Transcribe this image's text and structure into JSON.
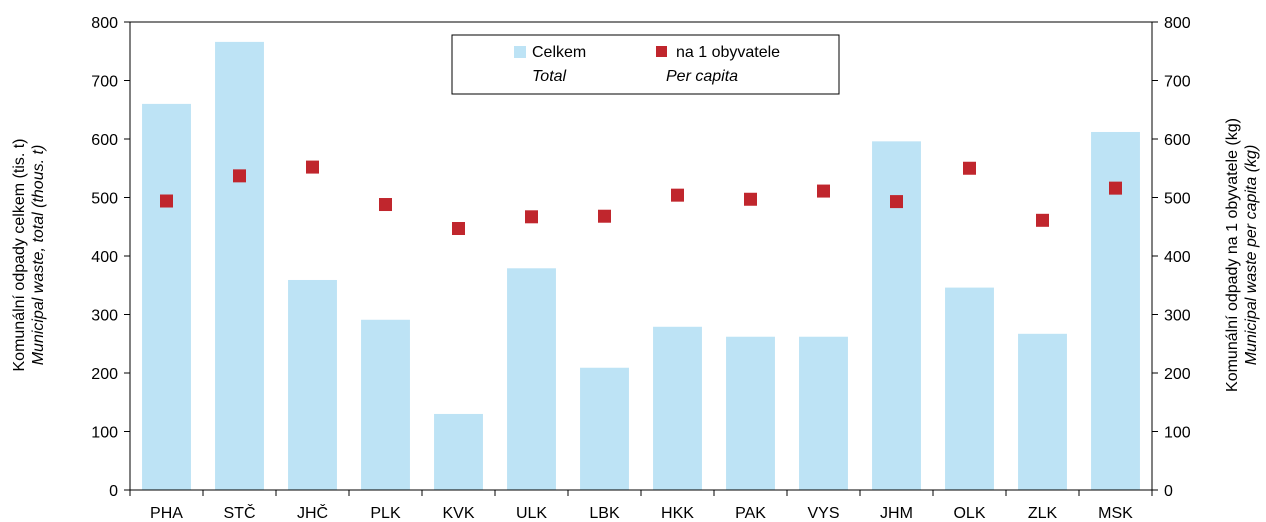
{
  "chart_data": {
    "type": "bar",
    "categories": [
      "PHA",
      "STČ",
      "JHČ",
      "PLK",
      "KVK",
      "ULK",
      "LBK",
      "HKK",
      "PAK",
      "VYS",
      "JHM",
      "OLK",
      "ZLK",
      "MSK"
    ],
    "series": [
      {
        "name": "Celkem",
        "name_en": "Total",
        "type": "bar",
        "axis": "left",
        "color": "#bde3f5",
        "values": [
          660,
          766,
          359,
          291,
          130,
          379,
          209,
          279,
          262,
          262,
          596,
          346,
          267,
          612
        ]
      },
      {
        "name": "na 1 obyvatele",
        "name_en": "Per capita",
        "type": "scatter",
        "marker": "square",
        "axis": "right",
        "color": "#c0262d",
        "values": [
          494,
          537,
          552,
          488,
          447,
          467,
          468,
          504,
          497,
          511,
          493,
          550,
          461,
          516
        ]
      }
    ],
    "ylabel_left": "Komunální odpady celkem (tis. t)",
    "ylabel_left_en": "Municipal waste, total (thous. t)",
    "ylabel_right": "Komunální odpady na 1 obyvatele (kg)",
    "ylabel_right_en": "Municipal waste per capita (kg)",
    "ylim_left": [
      0,
      800
    ],
    "ylim_right": [
      0,
      800
    ],
    "yticks": [
      0,
      100,
      200,
      300,
      400,
      500,
      600,
      700,
      800
    ],
    "legend": "top-center",
    "grid": false
  }
}
